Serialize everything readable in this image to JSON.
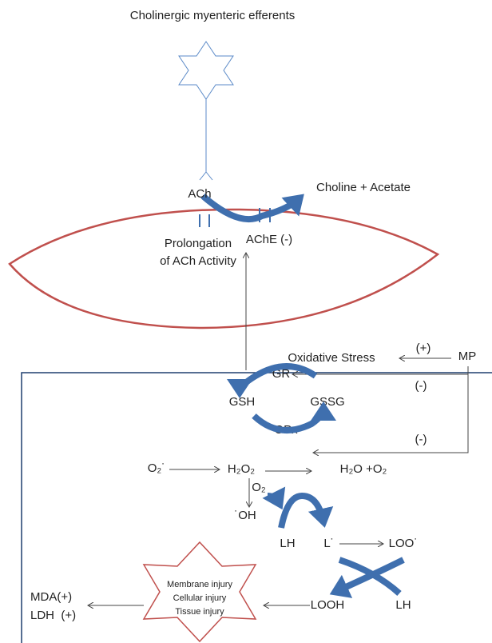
{
  "title": "Cholinergic myenteric efferents",
  "labels": {
    "ach": "ACh",
    "products": "Choline + Acetate",
    "prolongation_1": "Prolongation",
    "prolongation_2": "of ACh Activity",
    "ache": "AChE (-)",
    "oxidative_stress": "Oxidative Stress",
    "plus": "(+)",
    "mp": "MP",
    "gr": "GR",
    "minus_1": "(-)",
    "gsh": "GSH",
    "gssg": "GSSG",
    "gpx": "GPx",
    "minus_2": "(-)",
    "superoxide": "O₂˙",
    "peroxide": "H₂O₂",
    "water": "H₂O +O₂",
    "oxygen": "O₂",
    "hydroxyl": "˙OH",
    "lh_1": "LH",
    "lipid_radical": "L˙",
    "peroxyl": "LOO˙",
    "looh": "LOOH",
    "lh_2": "LH",
    "mda": "MDA(+)",
    "ldh": "LDH  (+)"
  },
  "injury": [
    "Membrane injury",
    "Cellular injury",
    "Tissue injury"
  ]
}
